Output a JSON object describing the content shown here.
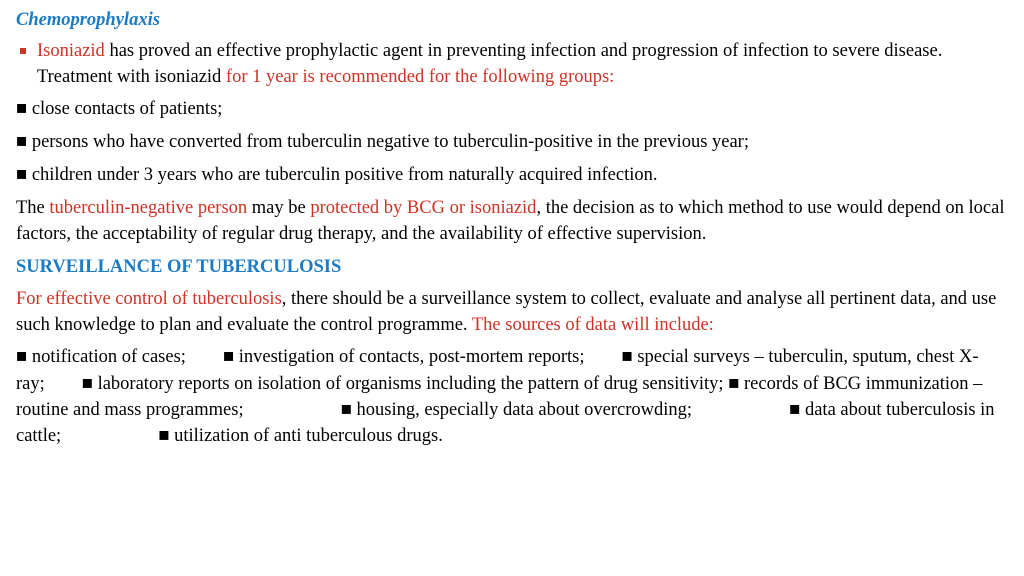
{
  "colors": {
    "blue": "#1b7bc4",
    "red": "#d03226",
    "black": "#000000",
    "bg": "#ffffff"
  },
  "fontsize_body": 18.5,
  "chemo": {
    "title": "Chemoprophylaxis",
    "bullet_lead_red": "Isoniazid",
    "bullet_body1": " has proved an effective prophylactic agent in preventing infection and progression of infection to severe disease. Treatment with isoniazid ",
    "bullet_body_red2": "for 1 year is recommended for the following groups:",
    "sq1": " close contacts of patients;",
    "sq2": " persons who have converted from tuberculin negative to tuberculin-positive in the previous year;",
    "sq3": " children under 3 years who are tuberculin positive from naturally acquired infection.",
    "para2_pre": "The ",
    "para2_red1": "tuberculin-negative person",
    "para2_mid": " may be ",
    "para2_red2": "protected by BCG or isoniazid",
    "para2_tail": ", the decision as to which method to use would depend on local factors, the acceptability of regular drug therapy, and the availability of effective supervision."
  },
  "surv": {
    "heading": "SURVEILLANCE OF TUBERCULOSIS",
    "p_red1": "For effective control of tuberculosis",
    "p_mid": ", there should be a surveillance system to collect, evaluate and analyse all pertinent data, and use such knowledge to plan and evaluate the control programme. ",
    "p_red2": "The sources of data will include:",
    "sq_block_a": " notification of cases;",
    "sq_block_b": " investigation of contacts, post-mortem reports;",
    "sq_block_c": " special surveys – tuberculin, sputum, chest X-ray;",
    "sq_block_d": " laboratory reports on isolation of organisms including the pattern of drug sensitivity;",
    "sq_block_e": " records of BCG immunization – routine and mass programmes;",
    "sq_block_f": " housing, especially data about overcrowding;",
    "sq_block_g": " data about tuberculosis in cattle;",
    "sq_block_h": " utilization of anti tuberculous drugs.",
    "square": "■",
    "gap_small": "       ",
    "gap_med": "        ",
    "gap_big": "                     "
  }
}
